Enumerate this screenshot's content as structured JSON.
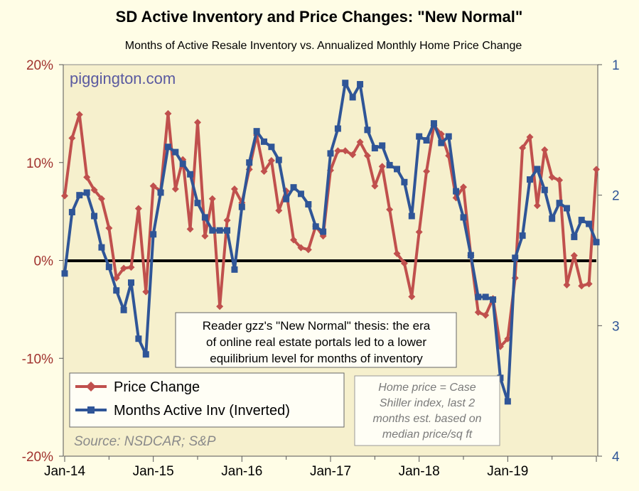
{
  "chart_data": {
    "type": "line",
    "title": "SD Active Inventory and Price Changes: \"New Normal\"",
    "subtitle": "Months of Active Resale Inventory vs. Annualized Monthly Home Price Change",
    "x_tick_labels": [
      "Jan-14",
      "Jan-15",
      "Jan-16",
      "Jan-17",
      "Jan-18",
      "Jan-19"
    ],
    "x_start": "2014-01",
    "left_axis": {
      "ticks": [
        "20%",
        "10%",
        "0%",
        "-10%",
        "-20%"
      ],
      "range": [
        -20,
        20
      ]
    },
    "right_axis": {
      "ticks": [
        "1",
        "2",
        "3",
        "4"
      ],
      "range": [
        1,
        4
      ],
      "inverted": true
    },
    "watermark": "piggington.com",
    "source": "Source: NSDCAR; S&P",
    "annotation": [
      "Reader gzz's \"New Normal\" thesis: the era",
      "of online real estate portals led to a lower",
      "equilibrium level for months of inventory"
    ],
    "note": [
      "Home price = Case",
      "Shiller index, last 2",
      "months est. based on",
      "median price/sq ft"
    ],
    "legend_placement": "bottom-left",
    "series": [
      {
        "name": "Price Change",
        "axis": "left",
        "color": "#c0504d",
        "marker": "diamond",
        "values": [
          6.6,
          12.5,
          14.9,
          8.5,
          7.2,
          6.3,
          3.3,
          -1.8,
          -0.8,
          -0.7,
          5.3,
          -3.2,
          7.6,
          7.1,
          15.0,
          7.3,
          10.3,
          3.2,
          14.1,
          2.5,
          6.3,
          -4.7,
          4.1,
          7.3,
          5.9,
          9.3,
          12.8,
          9.1,
          10.2,
          5.1,
          7.1,
          2.1,
          1.3,
          1.1,
          3.5,
          2.5,
          9.2,
          11.2,
          11.2,
          10.8,
          12.1,
          10.7,
          7.6,
          9.6,
          5.2,
          0.7,
          -0.3,
          -3.7,
          2.9,
          9.1,
          13.8,
          12.9,
          10.7,
          6.4,
          7.5,
          0.5,
          -5.3,
          -5.6,
          -3.9,
          -8.8,
          -8.0,
          -1.8,
          11.5,
          12.6,
          5.6,
          11.3,
          8.5,
          8.2,
          -2.5,
          0.5,
          -2.6,
          -2.4,
          9.3
        ]
      },
      {
        "name": "Months Active Inv (Inverted)",
        "axis": "right",
        "color": "#2f5597",
        "marker": "square",
        "values": [
          2.6,
          2.13,
          2.0,
          1.98,
          2.16,
          2.4,
          2.55,
          2.73,
          2.88,
          2.67,
          3.1,
          3.22,
          2.3,
          1.98,
          1.63,
          1.67,
          1.76,
          1.84,
          2.06,
          2.17,
          2.27,
          2.27,
          2.27,
          2.57,
          2.09,
          1.75,
          1.51,
          1.59,
          1.63,
          1.73,
          2.03,
          1.94,
          1.99,
          2.07,
          2.24,
          2.28,
          1.68,
          1.49,
          1.14,
          1.25,
          1.15,
          1.5,
          1.64,
          1.62,
          1.77,
          1.8,
          1.9,
          2.16,
          1.55,
          1.58,
          1.45,
          1.6,
          1.55,
          1.97,
          2.17,
          2.46,
          2.78,
          2.78,
          2.8,
          3.4,
          3.58,
          2.48,
          2.31,
          1.88,
          1.8,
          1.96,
          2.18,
          2.06,
          2.1,
          2.32,
          2.19,
          2.22,
          2.36
        ]
      }
    ]
  }
}
